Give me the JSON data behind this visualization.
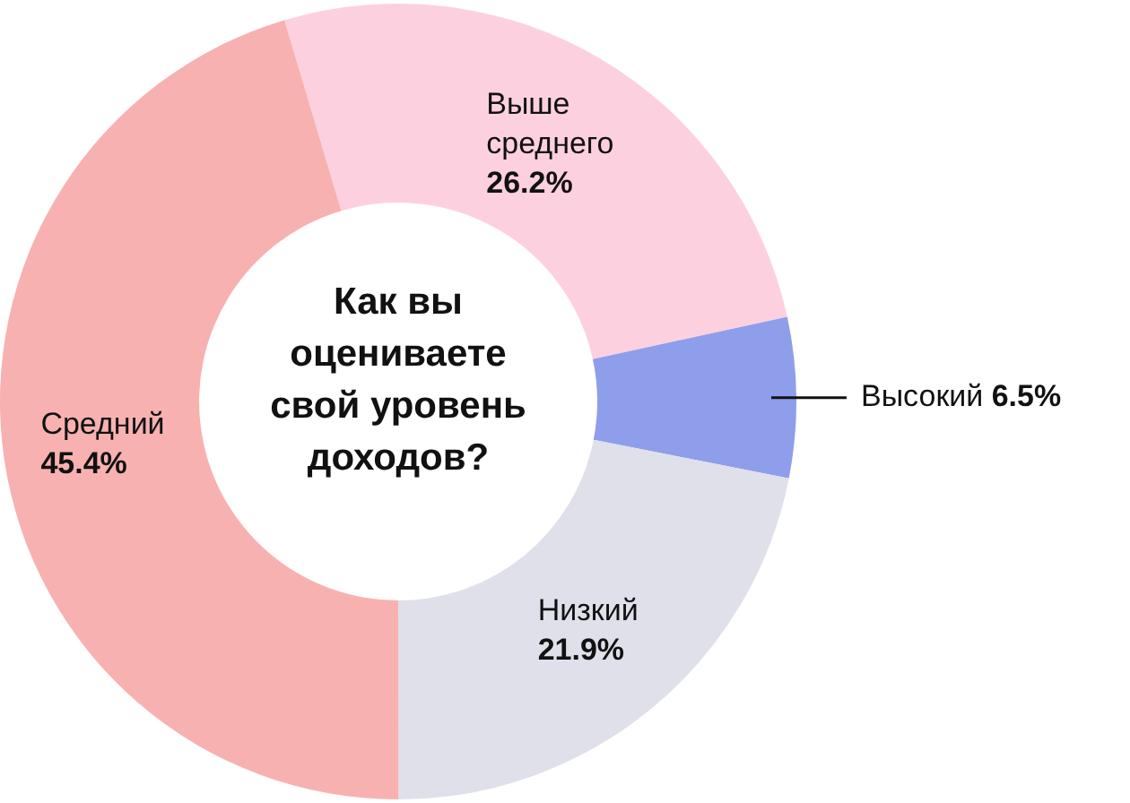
{
  "chart_data": {
    "type": "donut",
    "title": "Как вы оцениваете свой уровень доходов?",
    "categories": [
      "Выше среднего",
      "Высокий",
      "Низкий",
      "Средний"
    ],
    "values": [
      26.2,
      6.5,
      21.9,
      45.4
    ],
    "colors": [
      "#fdd0e0",
      "#8f9eea",
      "#dfe0ea",
      "#f8b1b1"
    ],
    "value_labels": [
      "26.2%",
      "6.5%",
      "21.9%",
      "45.4%"
    ],
    "legend": false
  }
}
